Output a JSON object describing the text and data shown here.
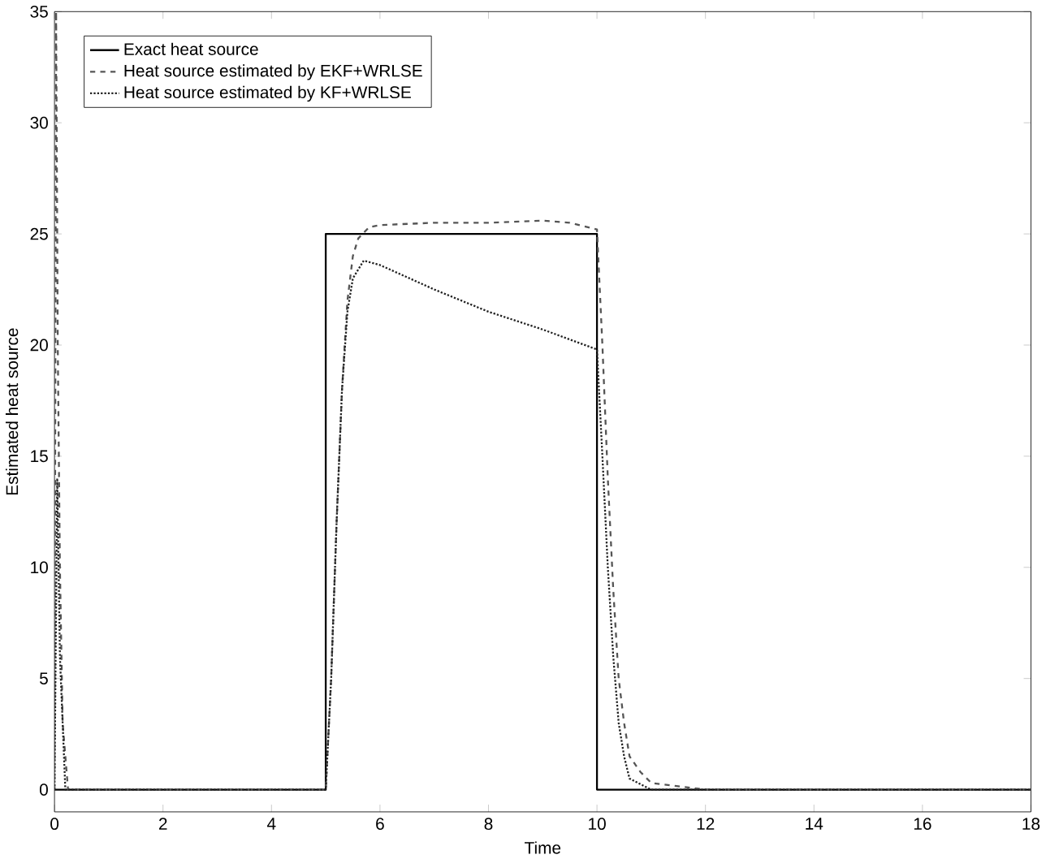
{
  "chart_data": {
    "type": "line",
    "xlabel": "Time",
    "ylabel": "Estimated heat source",
    "xlim": [
      0,
      18
    ],
    "ylim": [
      -1,
      35
    ],
    "xticks": [
      0,
      2,
      4,
      6,
      8,
      10,
      12,
      14,
      16,
      18
    ],
    "yticks": [
      0,
      5,
      10,
      15,
      20,
      25,
      30,
      35
    ],
    "legend": "top left",
    "grid": false,
    "series": [
      {
        "name": "Exact heat source",
        "color": "#000000",
        "line_style": "solid",
        "x": [
          0,
          5,
          5,
          10,
          10,
          18
        ],
        "values": [
          0,
          0,
          25,
          25,
          0,
          0
        ]
      },
      {
        "name": "Heat source estimated by EKF+WRLSE",
        "color": "#555555",
        "line_style": "dashed",
        "x": [
          0,
          0.03,
          0.06,
          0.1,
          0.15,
          0.25,
          1,
          2,
          3,
          4,
          5,
          5.1,
          5.2,
          5.3,
          5.4,
          5.5,
          5.6,
          5.8,
          6,
          7,
          8,
          9,
          9.5,
          10,
          10.1,
          10.2,
          10.3,
          10.4,
          10.5,
          10.6,
          10.8,
          11,
          12,
          14,
          16,
          18
        ],
        "values": [
          0,
          35,
          20,
          10,
          3,
          0,
          0,
          0,
          0,
          0,
          0,
          5,
          12,
          18,
          22,
          24,
          24.8,
          25.3,
          25.4,
          25.5,
          25.5,
          25.6,
          25.5,
          25.2,
          20,
          14,
          9,
          5,
          3,
          1.5,
          0.8,
          0.3,
          0,
          0,
          0,
          0
        ]
      },
      {
        "name": "Heat source estimated by KF+WRLSE",
        "color": "#222222",
        "line_style": "dotted",
        "x": [
          0,
          0.05,
          0.1,
          0.2,
          1,
          2,
          3,
          4,
          5,
          5.1,
          5.2,
          5.3,
          5.4,
          5.5,
          5.7,
          6,
          7,
          8,
          9,
          10,
          10.1,
          10.2,
          10.3,
          10.4,
          10.5,
          10.6,
          11,
          12,
          14,
          16,
          18
        ],
        "values": [
          0,
          14,
          6,
          0,
          0,
          0,
          0,
          0,
          0,
          5,
          12,
          18,
          21.5,
          23,
          23.8,
          23.6,
          22.5,
          21.5,
          20.7,
          19.8,
          15,
          10,
          6,
          3,
          1.5,
          0.5,
          0,
          0,
          0,
          0,
          0
        ]
      }
    ]
  }
}
